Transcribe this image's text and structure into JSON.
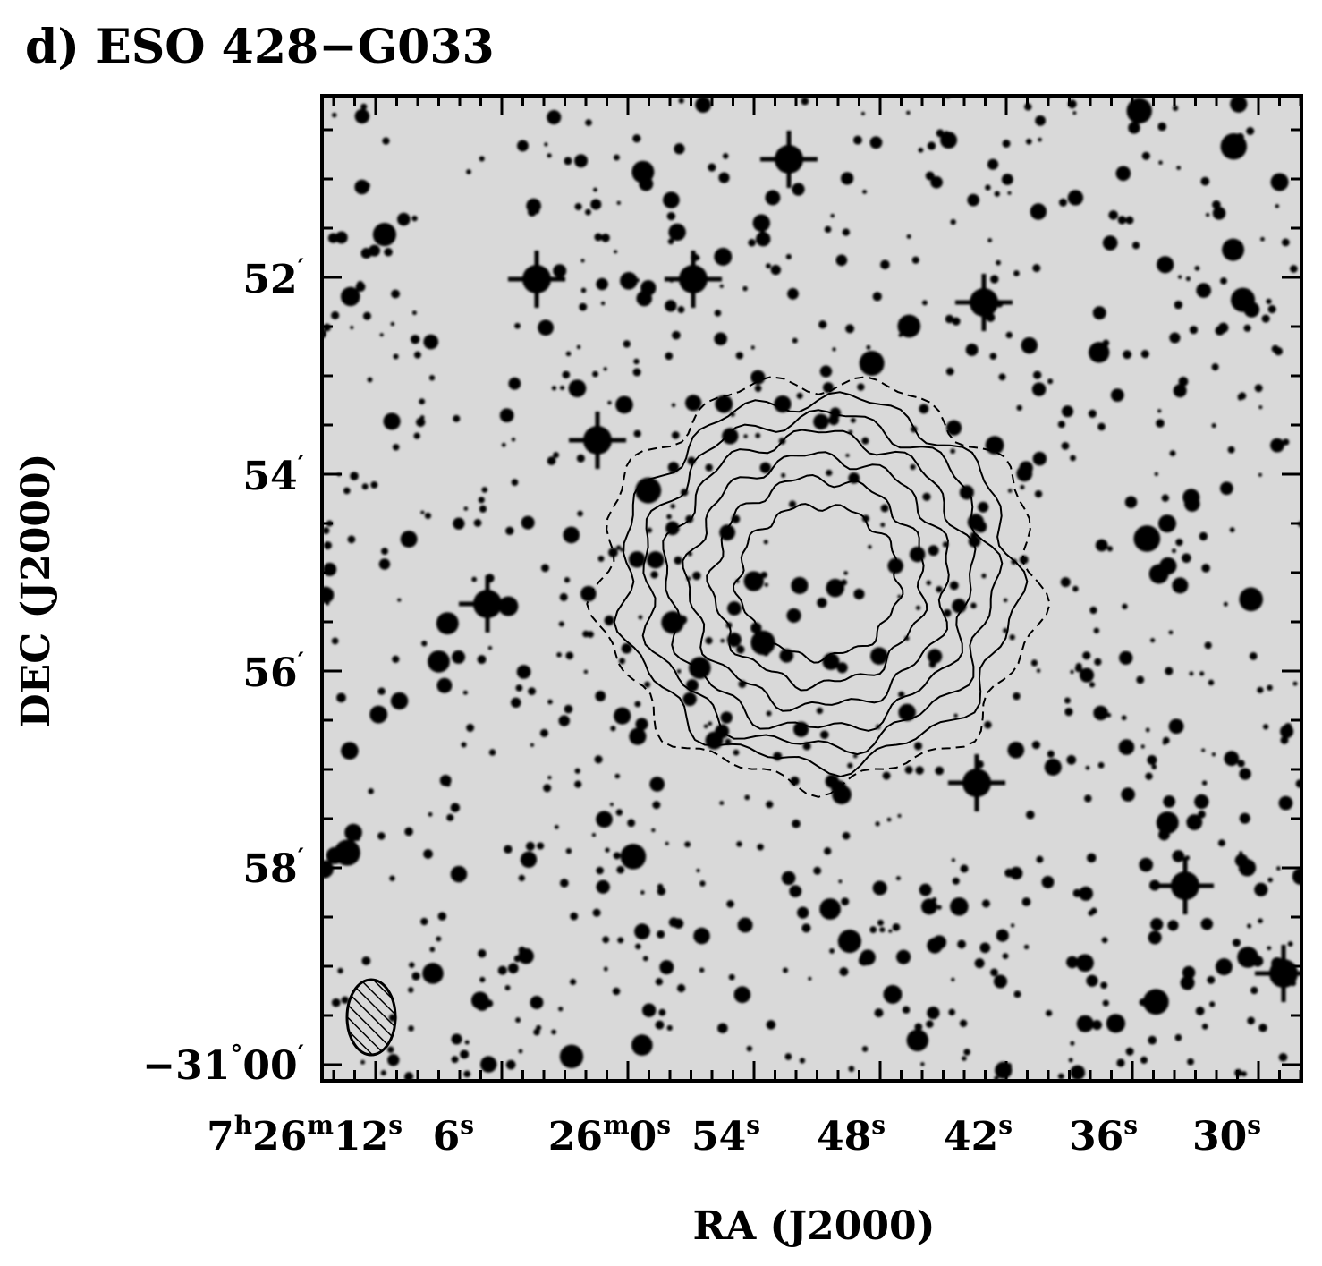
{
  "figure": {
    "title": "d) ESO 428−G033",
    "x_label": "RA (J2000)",
    "y_label": "DEC (J2000)",
    "x_tick_labels": [
      [
        "7",
        "h",
        "26",
        "m",
        "12",
        "s"
      ],
      [
        "6",
        "s"
      ],
      [
        "26",
        "m",
        "0",
        "s"
      ],
      [
        "54",
        "s"
      ],
      [
        "48",
        "s"
      ],
      [
        "42",
        "s"
      ],
      [
        "36",
        "s"
      ],
      [
        "30",
        "s"
      ]
    ],
    "y_tick_labels": [
      [
        "52",
        "′"
      ],
      [
        "54",
        "′"
      ],
      [
        "56",
        "′"
      ],
      [
        "58",
        "′"
      ],
      [
        "−31",
        "°",
        "00",
        "′"
      ]
    ]
  }
}
